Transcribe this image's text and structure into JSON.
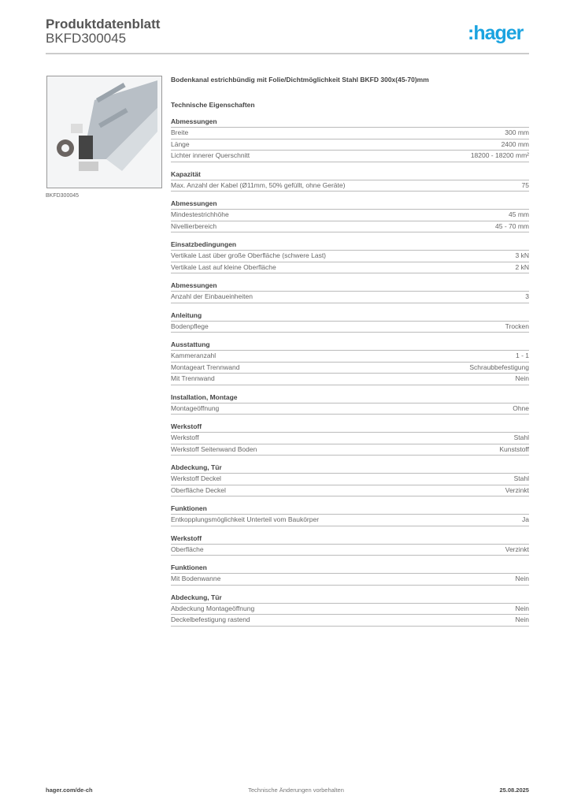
{
  "header": {
    "title": "Produktdatenblatt",
    "subtitle": "BKFD300045",
    "logo": ":hager",
    "brand_color": "#1aa3e0"
  },
  "product": {
    "image_caption": "BKFD300045",
    "description": "Bodenkanal estrichbündig mit Folie/Dichtmöglichkeit Stahl BKFD 300x(45-70)mm",
    "section_title": "Technische Eigenschaften"
  },
  "sections": [
    {
      "title": "Abmessungen",
      "rows": [
        [
          "Breite",
          "300 mm"
        ],
        [
          "Länge",
          "2400 mm"
        ],
        [
          "Lichter innerer Querschnitt",
          "18200 - 18200 mm²"
        ]
      ]
    },
    {
      "title": "Kapazität",
      "rows": [
        [
          "Max. Anzahl der Kabel (Ø11mm, 50% gefüllt, ohne Geräte)",
          "75"
        ]
      ]
    },
    {
      "title": "Abmessungen",
      "rows": [
        [
          "Mindestestrichhöhe",
          "45 mm"
        ],
        [
          "Nivellierbereich",
          "45 - 70 mm"
        ]
      ]
    },
    {
      "title": "Einsatzbedingungen",
      "rows": [
        [
          "Vertikale Last über große Oberfläche (schwere Last)",
          "3 kN"
        ],
        [
          "Vertikale Last auf kleine Oberfläche",
          "2 kN"
        ]
      ]
    },
    {
      "title": "Abmessungen",
      "rows": [
        [
          "Anzahl der Einbaueinheiten",
          "3"
        ]
      ]
    },
    {
      "title": "Anleitung",
      "rows": [
        [
          "Bodenpflege",
          "Trocken"
        ]
      ]
    },
    {
      "title": "Ausstattung",
      "rows": [
        [
          "Kammeranzahl",
          "1 - 1"
        ],
        [
          "Montageart Trennwand",
          "Schraubbefestigung"
        ],
        [
          "Mit Trennwand",
          "Nein"
        ]
      ]
    },
    {
      "title": "Installation, Montage",
      "rows": [
        [
          "Montageöffnung",
          "Ohne"
        ]
      ]
    },
    {
      "title": "Werkstoff",
      "rows": [
        [
          "Werkstoff",
          "Stahl"
        ],
        [
          "Werkstoff Seitenwand Boden",
          "Kunststoff"
        ]
      ]
    },
    {
      "title": "Abdeckung, Tür",
      "rows": [
        [
          "Werkstoff Deckel",
          "Stahl"
        ],
        [
          "Oberfläche Deckel",
          "Verzinkt"
        ]
      ]
    },
    {
      "title": "Funktionen",
      "rows": [
        [
          "Entkopplungsmöglichkeit Unterteil vom Baukörper",
          "Ja"
        ]
      ]
    },
    {
      "title": "Werkstoff",
      "rows": [
        [
          "Oberfläche",
          "Verzinkt"
        ]
      ]
    },
    {
      "title": "Funktionen",
      "rows": [
        [
          "Mit Bodenwanne",
          "Nein"
        ]
      ]
    },
    {
      "title": "Abdeckung, Tür",
      "rows": [
        [
          "Abdeckung Montageöffnung",
          "Nein"
        ],
        [
          "Deckelbefestigung rastend",
          "Nein"
        ]
      ]
    }
  ],
  "footer": {
    "left": "hager.com/de-ch",
    "center": "Technische Änderungen vorbehalten",
    "right": "25.08.2025"
  }
}
